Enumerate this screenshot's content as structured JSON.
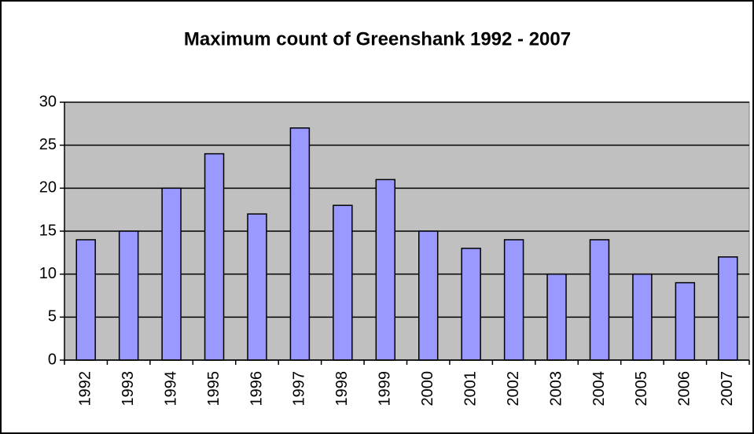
{
  "chart_data": {
    "type": "bar",
    "title": "Maximum count of Greenshank 1992 - 2007",
    "categories": [
      "1992",
      "1993",
      "1994",
      "1995",
      "1996",
      "1997",
      "1998",
      "1999",
      "2000",
      "2001",
      "2002",
      "2003",
      "2004",
      "2005",
      "2006",
      "2007"
    ],
    "values": [
      14,
      15,
      20,
      24,
      17,
      27,
      18,
      21,
      15,
      13,
      14,
      10,
      14,
      10,
      9,
      12
    ],
    "color": "#9999ff",
    "plot_background": "#c0c0c0",
    "ylim": [
      0,
      30
    ],
    "yticks": [
      0,
      5,
      10,
      15,
      20,
      25,
      30
    ],
    "grid": true
  }
}
